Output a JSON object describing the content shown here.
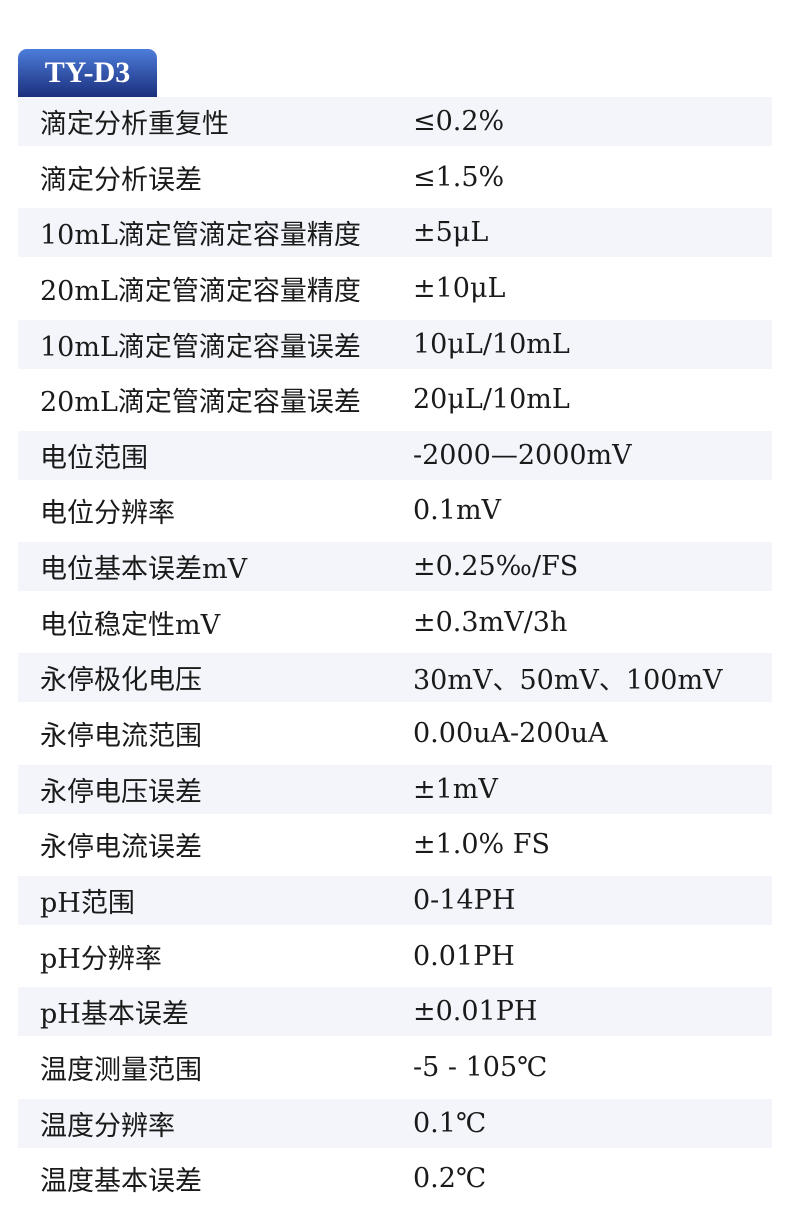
{
  "model": "TY-D3",
  "specs": [
    {
      "label": "滴定分析重复性",
      "value": "≤0.2%"
    },
    {
      "label": "滴定分析误差",
      "value": "≤1.5%"
    },
    {
      "label": "10mL滴定管滴定容量精度",
      "value": "±5μL"
    },
    {
      "label": "20mL滴定管滴定容量精度",
      "value": "±10μL"
    },
    {
      "label": "10mL滴定管滴定容量误差",
      "value": "10μL/10mL"
    },
    {
      "label": "20mL滴定管滴定容量误差",
      "value": "20μL/10mL"
    },
    {
      "label": "电位范围",
      "value": "-2000—2000mV"
    },
    {
      "label": "电位分辨率",
      "value": "0.1mV"
    },
    {
      "label": "电位基本误差mV",
      "value": "±0.25‰/FS"
    },
    {
      "label": "电位稳定性mV",
      "value": "±0.3mV/3h"
    },
    {
      "label": "永停极化电压",
      "value": "30mV、50mV、100mV"
    },
    {
      "label": "永停电流范围",
      "value": "0.00uA-200uA"
    },
    {
      "label": "永停电压误差",
      "value": "±1mV"
    },
    {
      "label": "永停电流误差",
      "value": "±1.0% FS"
    },
    {
      "label": "pH范围",
      "value": "0-14PH"
    },
    {
      "label": "pH分辨率",
      "value": "0.01PH"
    },
    {
      "label": "pH基本误差",
      "value": "±0.01PH"
    },
    {
      "label": "温度测量范围",
      "value": "-5 - 105℃"
    },
    {
      "label": "温度分辨率",
      "value": "0.1℃"
    },
    {
      "label": "温度基本误差",
      "value": "0.2℃"
    }
  ]
}
